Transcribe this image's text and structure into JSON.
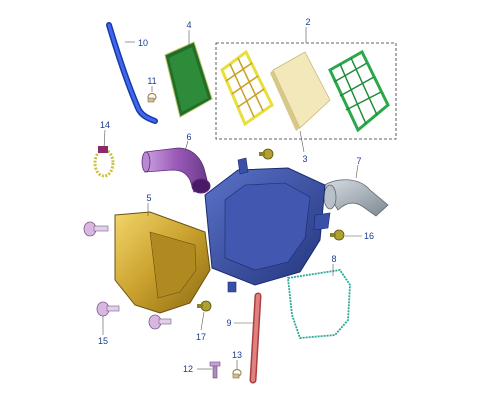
{
  "callouts": {
    "c1": "2",
    "c2": "3",
    "c3": "4",
    "c4": "5",
    "c5": "6",
    "c6": "7",
    "c7": "8",
    "c8": "9",
    "c9": "10",
    "c10": "11",
    "c11": "12",
    "c12": "13",
    "c13": "14",
    "c14": "15",
    "c15": "16",
    "c16": "17"
  },
  "colors": {
    "callout_text": "#1a3d8f",
    "leader_line": "#555555",
    "group_box": "#333333",
    "housing_blue": "#3a4fa8",
    "housing_gold": "#c9a630",
    "filter_green": "#2e8b3a",
    "filter_yellow": "#e8de3c",
    "filter_beige": "#f0e6b8",
    "grid_green": "#2ba84a",
    "hose_blue": "#2550d8",
    "duct_purple": "#9a5ab8",
    "duct_silver": "#9aa4ae",
    "gasket_teal": "#2aa898",
    "pipe_red": "#d86a6a"
  }
}
